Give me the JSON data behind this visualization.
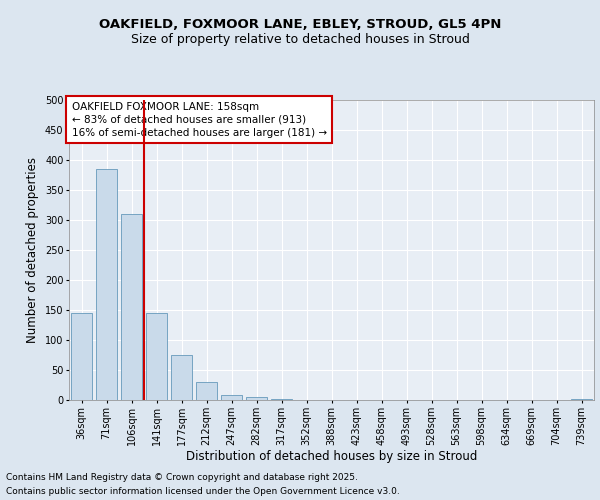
{
  "title_line1": "OAKFIELD, FOXMOOR LANE, EBLEY, STROUD, GL5 4PN",
  "title_line2": "Size of property relative to detached houses in Stroud",
  "xlabel": "Distribution of detached houses by size in Stroud",
  "ylabel": "Number of detached properties",
  "categories": [
    "36sqm",
    "71sqm",
    "106sqm",
    "141sqm",
    "177sqm",
    "212sqm",
    "247sqm",
    "282sqm",
    "317sqm",
    "352sqm",
    "388sqm",
    "423sqm",
    "458sqm",
    "493sqm",
    "528sqm",
    "563sqm",
    "598sqm",
    "634sqm",
    "669sqm",
    "704sqm",
    "739sqm"
  ],
  "values": [
    145,
    385,
    310,
    145,
    75,
    30,
    8,
    5,
    2,
    0,
    0,
    0,
    0,
    0,
    0,
    0,
    0,
    0,
    0,
    0,
    2
  ],
  "bar_color": "#c9daea",
  "bar_edge_color": "#6699bb",
  "vline_color": "#cc0000",
  "vline_x_index": 3,
  "annotation_text": "OAKFIELD FOXMOOR LANE: 158sqm\n← 83% of detached houses are smaller (913)\n16% of semi-detached houses are larger (181) →",
  "annotation_box_color": "#ffffff",
  "annotation_box_edge": "#cc0000",
  "ylim": [
    0,
    500
  ],
  "yticks": [
    0,
    50,
    100,
    150,
    200,
    250,
    300,
    350,
    400,
    450,
    500
  ],
  "bg_color": "#dce6f0",
  "plot_bg_color": "#e8eef5",
  "footer_line1": "Contains HM Land Registry data © Crown copyright and database right 2025.",
  "footer_line2": "Contains public sector information licensed under the Open Government Licence v3.0.",
  "title_fontsize": 9.5,
  "subtitle_fontsize": 9,
  "axis_label_fontsize": 8.5,
  "tick_fontsize": 7,
  "annotation_fontsize": 7.5,
  "footer_fontsize": 6.5
}
